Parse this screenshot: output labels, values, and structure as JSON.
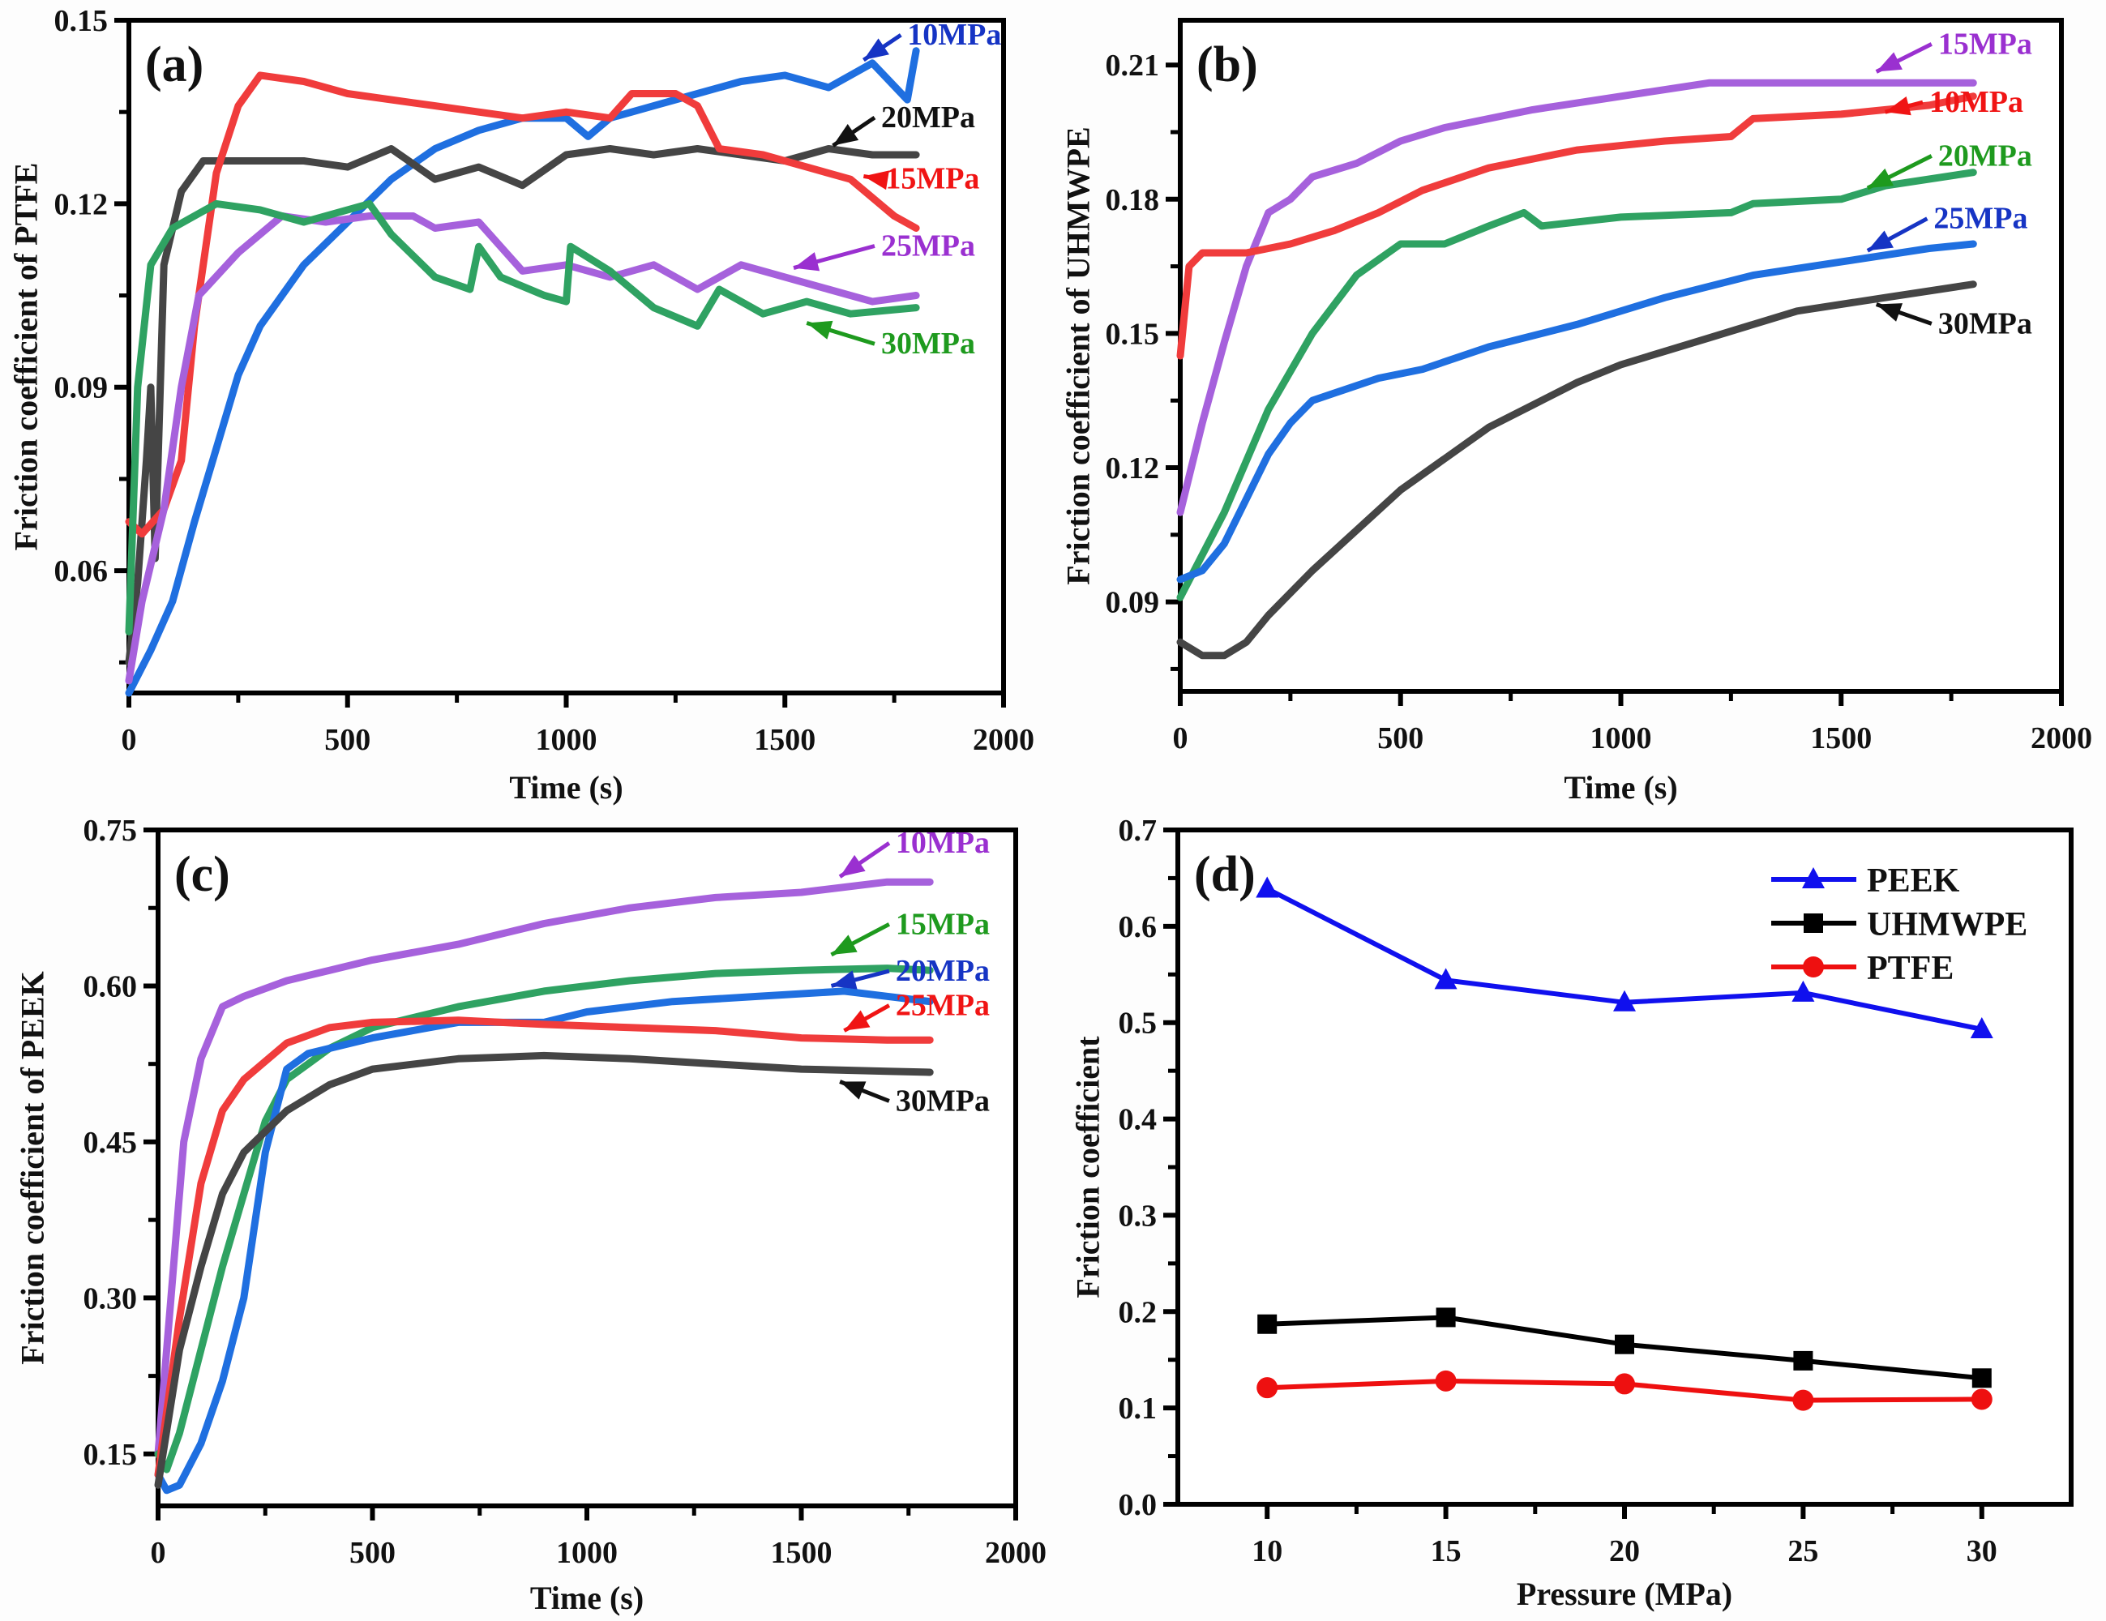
{
  "chart_data": [
    {
      "id": "a",
      "type": "line",
      "panel_label": "(a)",
      "title": "",
      "xlabel": "Time (s)",
      "ylabel": "Friction coefficient of PTFE",
      "xlim": [
        0,
        2000
      ],
      "ylim": [
        0.04,
        0.15
      ],
      "xticks": [
        0,
        500,
        1000,
        1500,
        2000
      ],
      "xtick_labels": [
        "0",
        "500",
        "1000",
        "1500",
        "2000"
      ],
      "yticks": [
        0.06,
        0.09,
        0.12,
        0.15
      ],
      "ytick_labels": [
        "0.06",
        "0.09",
        "0.12",
        "0.15"
      ],
      "grid": false,
      "series": [
        {
          "name": "10MPa",
          "color": "#1f6fe0",
          "label_color": "#1634c4",
          "x": [
            0,
            50,
            100,
            150,
            200,
            250,
            300,
            400,
            500,
            600,
            700,
            800,
            900,
            1000,
            1050,
            1100,
            1200,
            1300,
            1400,
            1500,
            1600,
            1700,
            1780,
            1800
          ],
          "y": [
            0.04,
            0.047,
            0.055,
            0.068,
            0.08,
            0.092,
            0.1,
            0.11,
            0.117,
            0.124,
            0.129,
            0.132,
            0.134,
            0.134,
            0.131,
            0.134,
            0.136,
            0.138,
            0.14,
            0.141,
            0.139,
            0.143,
            0.137,
            0.145
          ]
        },
        {
          "name": "20MPa",
          "color": "#454545",
          "label_color": "#111111",
          "x": [
            0,
            20,
            40,
            50,
            60,
            80,
            120,
            170,
            250,
            400,
            500,
            600,
            700,
            800,
            900,
            1000,
            1100,
            1200,
            1300,
            1400,
            1500,
            1600,
            1700,
            1800
          ],
          "y": [
            0.045,
            0.058,
            0.078,
            0.09,
            0.062,
            0.11,
            0.122,
            0.127,
            0.127,
            0.127,
            0.126,
            0.129,
            0.124,
            0.126,
            0.123,
            0.128,
            0.129,
            0.128,
            0.129,
            0.128,
            0.127,
            0.129,
            0.128,
            0.128
          ]
        },
        {
          "name": "15MPa",
          "color": "#f03c3c",
          "label_color": "#f01414",
          "x": [
            0,
            30,
            80,
            120,
            150,
            200,
            250,
            300,
            400,
            500,
            600,
            700,
            800,
            900,
            1000,
            1100,
            1150,
            1250,
            1300,
            1350,
            1450,
            1550,
            1650,
            1750,
            1800
          ],
          "y": [
            0.068,
            0.066,
            0.07,
            0.078,
            0.1,
            0.125,
            0.136,
            0.141,
            0.14,
            0.138,
            0.137,
            0.136,
            0.135,
            0.134,
            0.135,
            0.134,
            0.138,
            0.138,
            0.136,
            0.129,
            0.128,
            0.126,
            0.124,
            0.118,
            0.116
          ]
        },
        {
          "name": "25MPa",
          "color": "#a661dc",
          "label_color": "#9a30d0",
          "x": [
            0,
            30,
            80,
            120,
            160,
            250,
            350,
            450,
            550,
            650,
            700,
            800,
            900,
            1000,
            1100,
            1200,
            1300,
            1400,
            1500,
            1600,
            1700,
            1800
          ],
          "y": [
            0.042,
            0.055,
            0.07,
            0.09,
            0.105,
            0.112,
            0.118,
            0.117,
            0.118,
            0.118,
            0.116,
            0.117,
            0.109,
            0.11,
            0.108,
            0.11,
            0.106,
            0.11,
            0.108,
            0.106,
            0.104,
            0.105
          ]
        },
        {
          "name": "30MPa",
          "color": "#2fa262",
          "label_color": "#1e9a1e",
          "x": [
            0,
            20,
            50,
            100,
            200,
            300,
            400,
            500,
            550,
            600,
            700,
            780,
            800,
            850,
            950,
            1000,
            1010,
            1100,
            1200,
            1300,
            1350,
            1450,
            1550,
            1650,
            1800
          ],
          "y": [
            0.05,
            0.09,
            0.11,
            0.116,
            0.12,
            0.119,
            0.117,
            0.119,
            0.12,
            0.115,
            0.108,
            0.106,
            0.113,
            0.108,
            0.105,
            0.104,
            0.113,
            0.109,
            0.103,
            0.1,
            0.106,
            0.102,
            0.104,
            0.102,
            0.103
          ]
        }
      ],
      "annotations": [
        {
          "text": "10MPa",
          "series": "10MPa",
          "at": [
            1680,
            0.1435
          ],
          "label_at": [
            1780,
            0.146
          ]
        },
        {
          "text": "20MPa",
          "series": "20MPa",
          "at": [
            1610,
            0.1295
          ],
          "label_at": [
            1720,
            0.1325
          ]
        },
        {
          "text": "15MPa",
          "series": "15MPa",
          "at": [
            1680,
            0.1245
          ],
          "label_at": [
            1730,
            0.1225
          ]
        },
        {
          "text": "25MPa",
          "series": "25MPa",
          "at": [
            1520,
            0.1095
          ],
          "label_at": [
            1720,
            0.1115
          ]
        },
        {
          "text": "30MPa",
          "series": "30MPa",
          "at": [
            1550,
            0.1005
          ],
          "label_at": [
            1720,
            0.0955
          ]
        }
      ]
    },
    {
      "id": "b",
      "type": "line",
      "panel_label": "(b)",
      "title": "",
      "xlabel": "Time (s)",
      "ylabel": "Friction coefficient of UHMWPE",
      "xlim": [
        0,
        2000
      ],
      "ylim": [
        0.07,
        0.22
      ],
      "xticks": [
        0,
        500,
        1000,
        1500,
        2000
      ],
      "xtick_labels": [
        "0",
        "500",
        "1000",
        "1500",
        "2000"
      ],
      "yticks": [
        0.09,
        0.12,
        0.15,
        0.18,
        0.21
      ],
      "ytick_labels": [
        "0.09",
        "0.12",
        "0.15",
        "0.18",
        "0.21"
      ],
      "grid": false,
      "series": [
        {
          "name": "15MPa",
          "color": "#a661dc",
          "label_color": "#9a30d0",
          "x": [
            0,
            50,
            100,
            150,
            200,
            250,
            300,
            400,
            500,
            600,
            800,
            1000,
            1200,
            1400,
            1600,
            1800
          ],
          "y": [
            0.11,
            0.13,
            0.148,
            0.165,
            0.177,
            0.18,
            0.185,
            0.188,
            0.193,
            0.196,
            0.2,
            0.203,
            0.206,
            0.206,
            0.206,
            0.206
          ]
        },
        {
          "name": "10MPa",
          "color": "#f03c3c",
          "label_color": "#f01414",
          "x": [
            0,
            20,
            50,
            150,
            250,
            350,
            450,
            550,
            700,
            900,
            1100,
            1250,
            1300,
            1500,
            1700,
            1800
          ],
          "y": [
            0.145,
            0.165,
            0.168,
            0.168,
            0.17,
            0.173,
            0.177,
            0.182,
            0.187,
            0.191,
            0.193,
            0.194,
            0.198,
            0.199,
            0.201,
            0.203
          ]
        },
        {
          "name": "20MPa",
          "color": "#2fa262",
          "label_color": "#1e9a1e",
          "x": [
            0,
            100,
            200,
            300,
            400,
            500,
            600,
            700,
            780,
            820,
            1000,
            1250,
            1300,
            1500,
            1600,
            1800
          ],
          "y": [
            0.091,
            0.11,
            0.133,
            0.15,
            0.163,
            0.17,
            0.17,
            0.174,
            0.177,
            0.174,
            0.176,
            0.177,
            0.179,
            0.18,
            0.183,
            0.186
          ]
        },
        {
          "name": "25MPa",
          "color": "#1f6fe0",
          "label_color": "#1634c4",
          "x": [
            0,
            50,
            100,
            200,
            250,
            300,
            450,
            550,
            700,
            900,
            1100,
            1300,
            1500,
            1700,
            1800
          ],
          "y": [
            0.095,
            0.097,
            0.103,
            0.123,
            0.13,
            0.135,
            0.14,
            0.142,
            0.147,
            0.152,
            0.158,
            0.163,
            0.166,
            0.169,
            0.17
          ]
        },
        {
          "name": "30MPa",
          "color": "#454545",
          "label_color": "#111111",
          "x": [
            0,
            50,
            100,
            150,
            200,
            300,
            400,
            500,
            600,
            700,
            800,
            900,
            1000,
            1200,
            1400,
            1600,
            1800
          ],
          "y": [
            0.081,
            0.078,
            0.078,
            0.081,
            0.087,
            0.097,
            0.106,
            0.115,
            0.122,
            0.129,
            0.134,
            0.139,
            0.143,
            0.149,
            0.155,
            0.158,
            0.161
          ]
        }
      ],
      "annotations": [
        {
          "text": "15MPa",
          "series": "15MPa",
          "at": [
            1580,
            0.2085
          ],
          "label_at": [
            1720,
            0.2125
          ]
        },
        {
          "text": "10MPa",
          "series": "10MPa",
          "at": [
            1600,
            0.1995
          ],
          "label_at": [
            1700,
            0.1995
          ]
        },
        {
          "text": "20MPa",
          "series": "20MPa",
          "at": [
            1560,
            0.1825
          ],
          "label_at": [
            1720,
            0.1875
          ]
        },
        {
          "text": "25MPa",
          "series": "25MPa",
          "at": [
            1560,
            0.1685
          ],
          "label_at": [
            1710,
            0.1735
          ]
        },
        {
          "text": "30MPa",
          "series": "30MPa",
          "at": [
            1580,
            0.1565
          ],
          "label_at": [
            1720,
            0.15
          ]
        }
      ]
    },
    {
      "id": "c",
      "type": "line",
      "panel_label": "(c)",
      "title": "",
      "xlabel": "Time (s)",
      "ylabel": "Friction coefficient of PEEK",
      "xlim": [
        0,
        2000
      ],
      "ylim": [
        0.1,
        0.75
      ],
      "xticks": [
        0,
        500,
        1000,
        1500,
        2000
      ],
      "xtick_labels": [
        "0",
        "500",
        "1000",
        "1500",
        "2000"
      ],
      "yticks": [
        0.15,
        0.3,
        0.45,
        0.6,
        0.75
      ],
      "ytick_labels": [
        "0.15",
        "0.30",
        "0.45",
        "0.60",
        "0.75"
      ],
      "grid": false,
      "series": [
        {
          "name": "10MPa",
          "color": "#a661dc",
          "label_color": "#9a30d0",
          "x": [
            0,
            30,
            60,
            100,
            150,
            200,
            300,
            400,
            500,
            700,
            900,
            1100,
            1300,
            1500,
            1700,
            1800
          ],
          "y": [
            0.15,
            0.3,
            0.45,
            0.53,
            0.58,
            0.59,
            0.605,
            0.615,
            0.625,
            0.64,
            0.66,
            0.675,
            0.685,
            0.69,
            0.7,
            0.7
          ]
        },
        {
          "name": "15MPa",
          "color": "#2fa262",
          "label_color": "#1e9a1e",
          "x": [
            0,
            20,
            50,
            100,
            150,
            200,
            250,
            300,
            400,
            500,
            700,
            900,
            1100,
            1300,
            1500,
            1700,
            1800
          ],
          "y": [
            0.15,
            0.135,
            0.17,
            0.25,
            0.33,
            0.4,
            0.47,
            0.51,
            0.54,
            0.56,
            0.58,
            0.595,
            0.605,
            0.612,
            0.615,
            0.617,
            0.615
          ]
        },
        {
          "name": "20MPa",
          "color": "#1f6fe0",
          "label_color": "#1634c4",
          "x": [
            0,
            20,
            50,
            100,
            150,
            200,
            250,
            300,
            350,
            500,
            700,
            900,
            1000,
            1200,
            1400,
            1600,
            1700,
            1800
          ],
          "y": [
            0.13,
            0.115,
            0.12,
            0.16,
            0.22,
            0.3,
            0.44,
            0.52,
            0.535,
            0.55,
            0.565,
            0.565,
            0.575,
            0.585,
            0.59,
            0.595,
            0.59,
            0.585
          ]
        },
        {
          "name": "25MPa",
          "color": "#f03c3c",
          "label_color": "#f01414",
          "x": [
            0,
            50,
            100,
            150,
            200,
            300,
            400,
            500,
            700,
            900,
            1100,
            1300,
            1500,
            1700,
            1800
          ],
          "y": [
            0.13,
            0.28,
            0.41,
            0.48,
            0.51,
            0.545,
            0.56,
            0.565,
            0.567,
            0.563,
            0.56,
            0.557,
            0.55,
            0.548,
            0.548
          ]
        },
        {
          "name": "30MPa",
          "color": "#454545",
          "label_color": "#111111",
          "x": [
            0,
            50,
            100,
            150,
            200,
            300,
            400,
            500,
            700,
            900,
            1100,
            1300,
            1500,
            1700,
            1800
          ],
          "y": [
            0.12,
            0.25,
            0.33,
            0.4,
            0.44,
            0.48,
            0.505,
            0.52,
            0.53,
            0.533,
            0.53,
            0.525,
            0.52,
            0.518,
            0.517
          ]
        }
      ],
      "annotations": [
        {
          "text": "10MPa",
          "series": "10MPa",
          "at": [
            1590,
            0.705
          ],
          "label_at": [
            1720,
            0.728
          ]
        },
        {
          "text": "15MPa",
          "series": "15MPa",
          "at": [
            1570,
            0.63
          ],
          "label_at": [
            1720,
            0.65
          ]
        },
        {
          "text": "20MPa",
          "series": "20MPa",
          "at": [
            1570,
            0.6
          ],
          "label_at": [
            1720,
            0.605
          ]
        },
        {
          "text": "25MPa",
          "series": "25MPa",
          "at": [
            1600,
            0.557
          ],
          "label_at": [
            1720,
            0.572
          ]
        },
        {
          "text": "30MPa",
          "series": "30MPa",
          "at": [
            1590,
            0.508
          ],
          "label_at": [
            1720,
            0.48
          ]
        }
      ]
    },
    {
      "id": "d",
      "type": "line",
      "panel_label": "(d)",
      "title": "",
      "xlabel": "Pressure (MPa)",
      "ylabel": "Friction coefficient",
      "xlim": [
        7.5,
        32.5
      ],
      "ylim": [
        0.0,
        0.7
      ],
      "xticks": [
        10,
        15,
        20,
        25,
        30
      ],
      "xtick_labels": [
        "10",
        "15",
        "20",
        "25",
        "30"
      ],
      "yticks": [
        0.0,
        0.1,
        0.2,
        0.3,
        0.4,
        0.5,
        0.6,
        0.7
      ],
      "ytick_labels": [
        "0.0",
        "0.1",
        "0.2",
        "0.3",
        "0.4",
        "0.5",
        "0.6",
        "0.7"
      ],
      "grid": false,
      "legend": {
        "position": "top-right"
      },
      "x": [
        10,
        15,
        20,
        25,
        30
      ],
      "series": [
        {
          "name": "PEEK",
          "color": "#1010ee",
          "marker": "triangle",
          "values": [
            0.639,
            0.544,
            0.521,
            0.531,
            0.493
          ]
        },
        {
          "name": "UHMWPE",
          "color": "#000000",
          "marker": "square",
          "values": [
            0.187,
            0.194,
            0.166,
            0.149,
            0.131
          ]
        },
        {
          "name": "PTFE",
          "color": "#ee1010",
          "marker": "circle",
          "values": [
            0.121,
            0.128,
            0.125,
            0.108,
            0.109
          ]
        }
      ]
    }
  ]
}
